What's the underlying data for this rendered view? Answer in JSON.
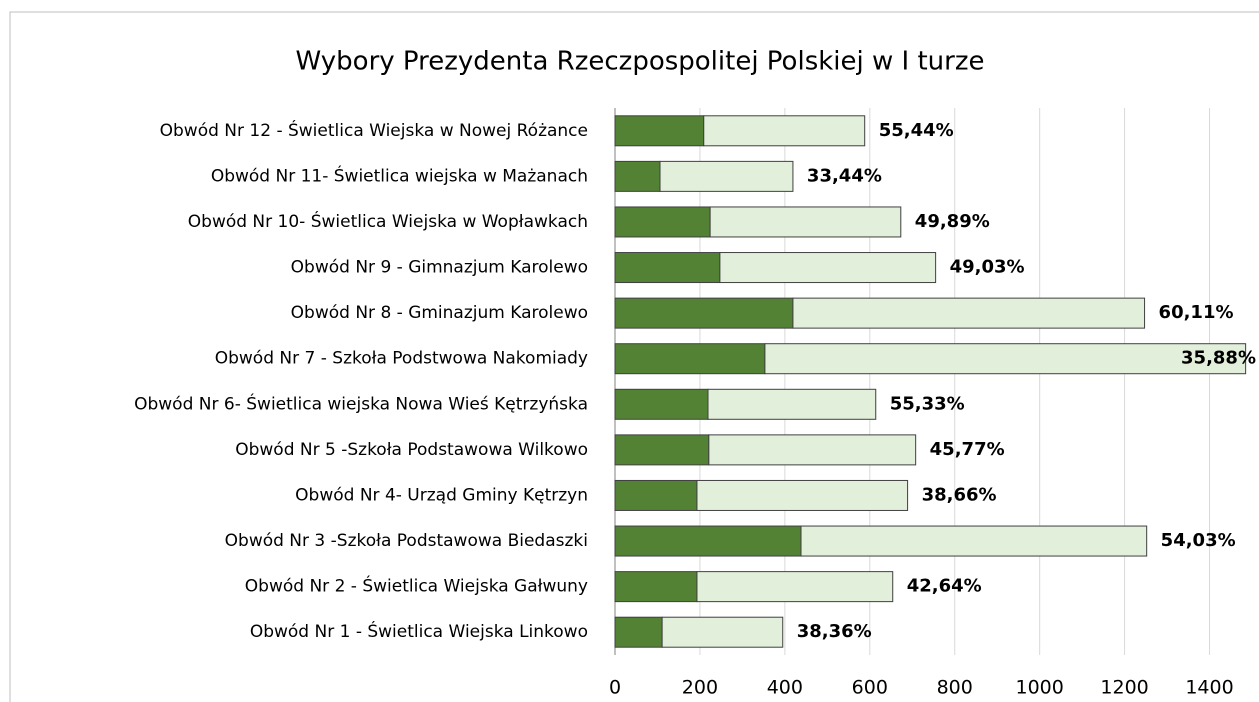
{
  "chart_data": {
    "type": "stacked_barh",
    "title": "Wybory Prezydenta Rzeczpospolitej Polskiej w I turze",
    "categories": [
      "Obwód Nr 12 - Świetlica Wiejska w Nowej Różance",
      "Obwód Nr 11- Świetlica wiejska w Mażanach",
      "Obwód Nr 10- Świetlica Wiejska w Wopławkach",
      "Obwód Nr 9 - Gimnazjum Karolewo",
      "Obwód Nr 8 - Gminazjum Karolewo",
      "Obwód Nr 7 - Szkoła Podstwowa Nakomiady",
      "Obwód Nr 6- Świetlica wiejska Nowa Wieś Kętrzyńska",
      "Obwód Nr 5 -Szkoła Podstawowa Wilkowo",
      "Obwód Nr 4- Urząd Gminy Kętrzyn",
      "Obwód Nr 3 -Szkoła Podstawowa Biedaszki",
      "Obwód Nr 2 - Świetlica Wiejska Gałwuny",
      "Obwód Nr 1 - Świetlica Wiejska Linkowo"
    ],
    "series": [
      {
        "color": "#548235",
        "values": [
          209,
          106,
          224,
          247,
          419,
          353,
          219,
          221,
          193,
          438,
          193,
          111
        ]
      },
      {
        "color": "#e2efda",
        "values": [
          379,
          313,
          449,
          508,
          828,
          1132,
          395,
          487,
          496,
          814,
          461,
          284
        ]
      }
    ],
    "annotations": [
      "55,44%",
      "33,44%",
      "49,89%",
      "49,03%",
      "60,11%",
      "35,88%",
      "55,33%",
      "45,77%",
      "38,66%",
      "54,03%",
      "42,64%",
      "38,36%"
    ],
    "xlim": [
      0,
      1500
    ],
    "xticks": [
      0,
      200,
      400,
      600,
      800,
      1000,
      1200,
      1400
    ],
    "grid": true
  }
}
